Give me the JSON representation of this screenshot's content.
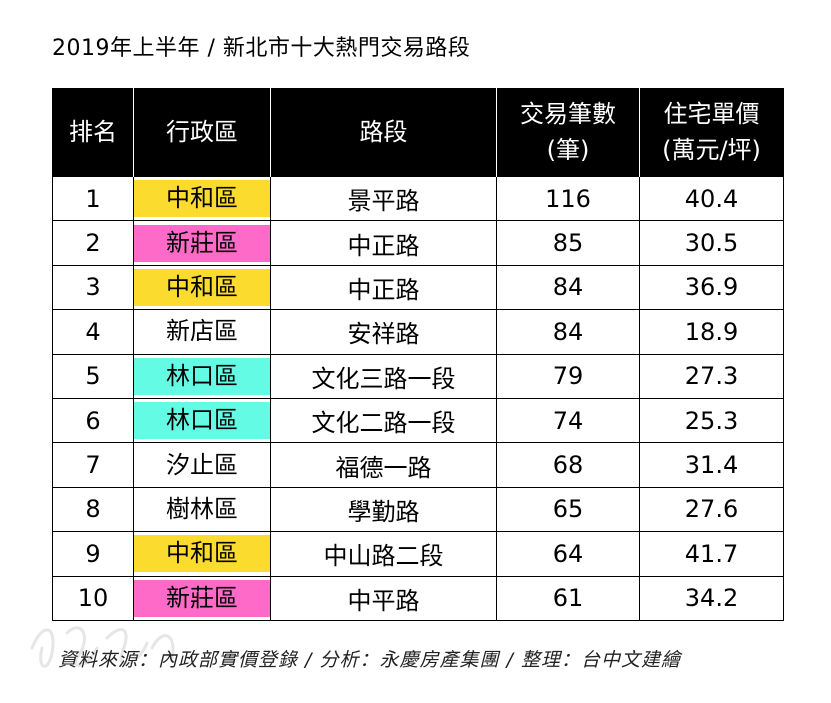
{
  "title": "2019年上半年 / 新北市十大熱門交易路段",
  "table": {
    "headers": {
      "rank": "排名",
      "district": "行政區",
      "road": "路段",
      "count_line1": "交易筆數",
      "count_line2": "(筆)",
      "price_line1": "住宅單價",
      "price_line2": "(萬元/坪)"
    },
    "rows": [
      {
        "rank": "1",
        "district": "中和區",
        "road": "景平路",
        "count": "116",
        "price": "40.4",
        "highlight": "#fcdb2f"
      },
      {
        "rank": "2",
        "district": "新莊區",
        "road": "中正路",
        "count": "85",
        "price": "30.5",
        "highlight": "#fd6ac8"
      },
      {
        "rank": "3",
        "district": "中和區",
        "road": "中正路",
        "count": "84",
        "price": "36.9",
        "highlight": "#fcdb2f"
      },
      {
        "rank": "4",
        "district": "新店區",
        "road": "安祥路",
        "count": "84",
        "price": "18.9",
        "highlight": ""
      },
      {
        "rank": "5",
        "district": "林口區",
        "road": "文化三路一段",
        "count": "79",
        "price": "27.3",
        "highlight": "#63fbe3"
      },
      {
        "rank": "6",
        "district": "林口區",
        "road": "文化二路一段",
        "count": "74",
        "price": "25.3",
        "highlight": "#63fbe3"
      },
      {
        "rank": "7",
        "district": "汐止區",
        "road": "福德一路",
        "count": "68",
        "price": "31.4",
        "highlight": ""
      },
      {
        "rank": "8",
        "district": "樹林區",
        "road": "學勤路",
        "count": "65",
        "price": "27.6",
        "highlight": ""
      },
      {
        "rank": "9",
        "district": "中和區",
        "road": "中山路二段",
        "count": "64",
        "price": "41.7",
        "highlight": "#fcdb2f"
      },
      {
        "rank": "10",
        "district": "新莊區",
        "road": "中平路",
        "count": "61",
        "price": "34.2",
        "highlight": "#fd6ac8"
      }
    ]
  },
  "footer": "資料來源：內政部實價登錄 / 分析：永慶房產集團 / 整理：台中文建繪",
  "colors": {
    "header_bg": "#000000",
    "header_text": "#ffffff",
    "zhonghe_highlight": "#fcdb2f",
    "xinzhuang_highlight": "#fd6ac8",
    "linkou_highlight": "#63fbe3"
  }
}
